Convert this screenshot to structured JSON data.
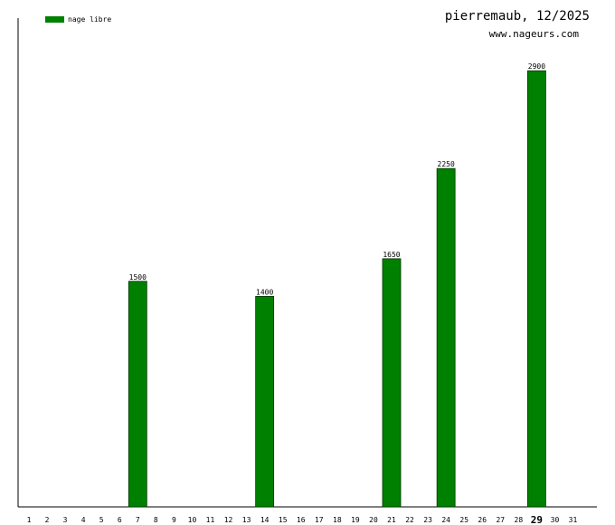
{
  "title": "pierremaub, 12/2025",
  "site": "www.nageurs.com",
  "colors": {
    "bar": "#008000",
    "bar_stroke": "#003300",
    "axis": "#000000"
  },
  "chart_data": {
    "type": "bar",
    "categories": [
      "1",
      "2",
      "3",
      "4",
      "5",
      "6",
      "7",
      "8",
      "9",
      "10",
      "11",
      "12",
      "13",
      "14",
      "15",
      "16",
      "17",
      "18",
      "19",
      "20",
      "21",
      "22",
      "23",
      "24",
      "25",
      "26",
      "27",
      "28",
      "29",
      "30",
      "31"
    ],
    "series": [
      {
        "name": "nage libre",
        "values": [
          0,
          0,
          0,
          0,
          0,
          0,
          1500,
          0,
          0,
          0,
          0,
          0,
          0,
          1400,
          0,
          0,
          0,
          0,
          0,
          0,
          1650,
          0,
          0,
          2250,
          0,
          0,
          0,
          0,
          2900,
          0,
          0
        ]
      }
    ],
    "highlight_category": "29",
    "data_labels": true,
    "ylim": [
      0,
      3250
    ],
    "grid": false,
    "legend": "top-left"
  }
}
